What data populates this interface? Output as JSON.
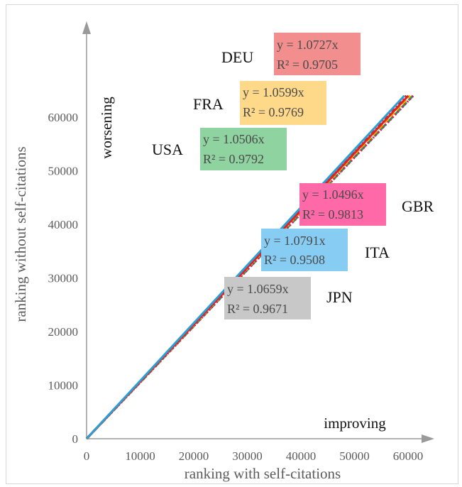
{
  "chart_data": {
    "type": "scatter",
    "title": "",
    "xlabel": "ranking with self-citations",
    "ylabel": "ranking without self-citations",
    "xlim": [
      0,
      64000
    ],
    "ylim": [
      0,
      64000
    ],
    "xticks": [
      "0",
      "10000",
      "20000",
      "30000",
      "40000",
      "50000",
      "60000"
    ],
    "yticks": [
      "0",
      "10000",
      "20000",
      "30000",
      "40000",
      "50000",
      "60000"
    ],
    "annotations": {
      "worsening": "worsening",
      "improving": "improving"
    },
    "series": [
      {
        "name": "DEU",
        "equation": "y = 1.0727x",
        "r2": "R² = 0.9705",
        "slope": 1.0727,
        "color": "#f28e8e",
        "line": "#d62020",
        "dash": "6,3,2,3"
      },
      {
        "name": "FRA",
        "equation": "y = 1.0599x",
        "r2": "R² = 0.9769",
        "slope": 1.0599,
        "color": "#ffd98a",
        "line": "#f2b700",
        "dash": "8,4"
      },
      {
        "name": "USA",
        "equation": "y = 1.0506x",
        "r2": "R² = 0.9792",
        "slope": 1.0506,
        "color": "#8fd3a0",
        "line": "#1aa34a",
        "dash": "10,4"
      },
      {
        "name": "GBR",
        "equation": "y = 1.0496x",
        "r2": "R² = 0.9813",
        "slope": 1.0496,
        "color": "#ff69a8",
        "line": "#e8156e",
        "dash": "2,3"
      },
      {
        "name": "ITA",
        "equation": "y = 1.0791x",
        "r2": "R² = 0.9508",
        "slope": 1.0791,
        "color": "#87cdf3",
        "line": "#2a9fd8",
        "dash": ""
      },
      {
        "name": "JPN",
        "equation": "y = 1.0659x",
        "r2": "R² = 0.9671",
        "slope": 1.0659,
        "color": "#c8c8c8",
        "line": "#e42222",
        "dash": ""
      }
    ]
  }
}
